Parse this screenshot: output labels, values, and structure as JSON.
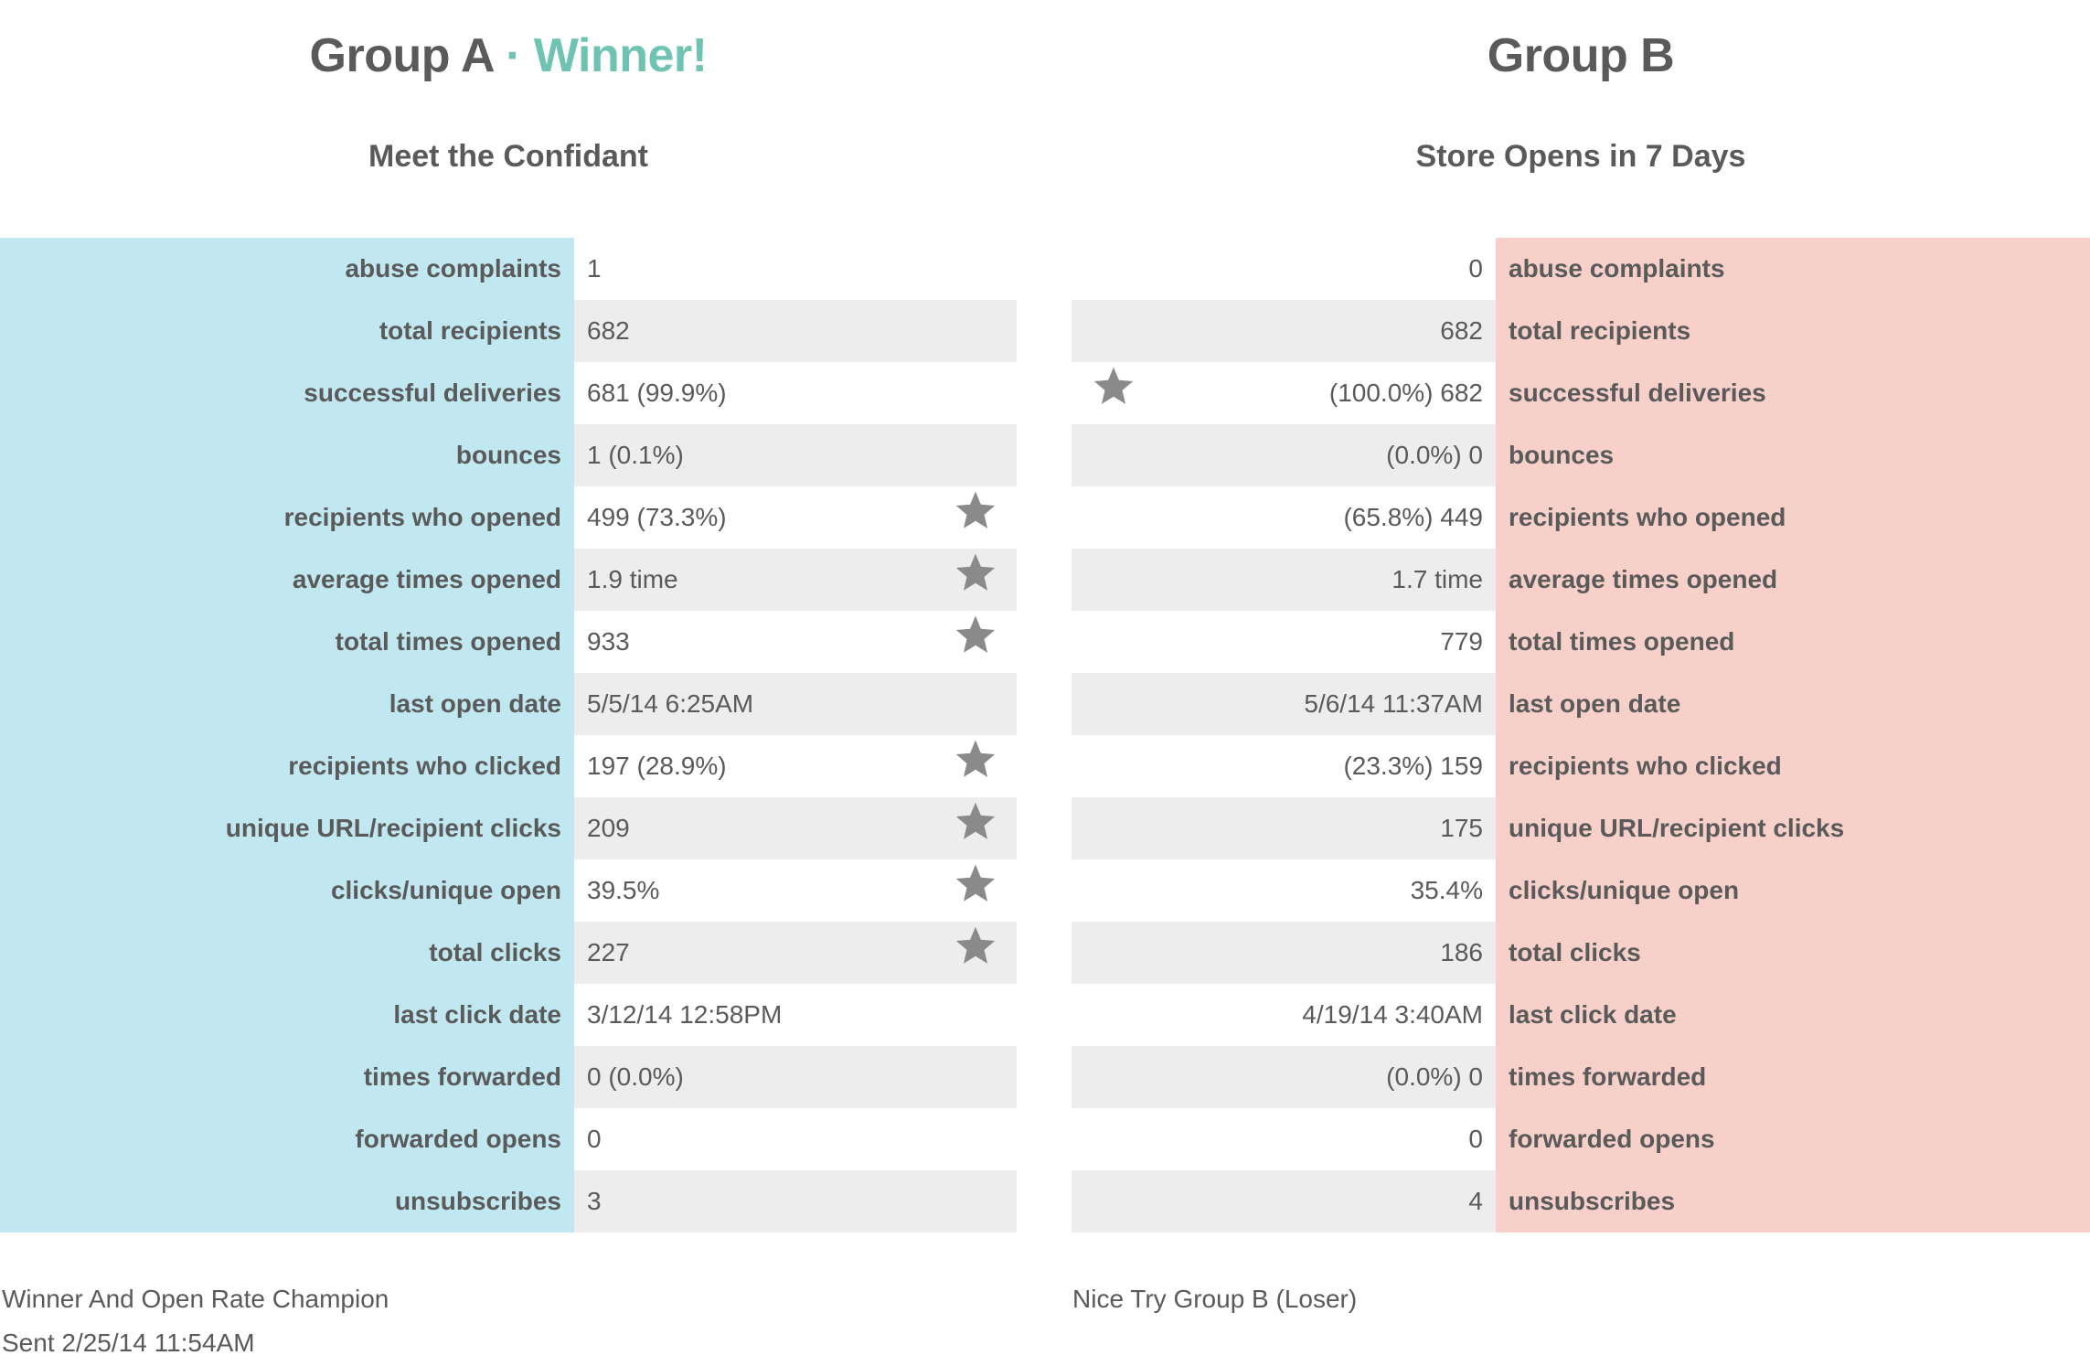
{
  "group_a": {
    "title": "Group A",
    "separator": "·",
    "winner_label": "Winner!",
    "subject": "Meet the Confidant",
    "footer_note": "Winner And Open Rate Champion",
    "sent": "Sent 2/25/14 11:54AM",
    "rows": [
      {
        "label": "abuse complaints",
        "value": "1",
        "star": false
      },
      {
        "label": "total recipients",
        "value": "682",
        "star": false
      },
      {
        "label": "successful deliveries",
        "value": "681 (99.9%)",
        "star": false
      },
      {
        "label": "bounces",
        "value": "1 (0.1%)",
        "star": false
      },
      {
        "label": "recipients who opened",
        "value": "499 (73.3%)",
        "star": true
      },
      {
        "label": "average times opened",
        "value": "1.9 time",
        "star": true
      },
      {
        "label": "total times opened",
        "value": "933",
        "star": true
      },
      {
        "label": "last open date",
        "value": "5/5/14 6:25AM",
        "star": false
      },
      {
        "label": "recipients who clicked",
        "value": "197 (28.9%)",
        "star": true
      },
      {
        "label": "unique URL/recipient clicks",
        "value": "209",
        "star": true
      },
      {
        "label": "clicks/unique open",
        "value": "39.5%",
        "star": true
      },
      {
        "label": "total clicks",
        "value": "227",
        "star": true
      },
      {
        "label": "last click date",
        "value": "3/12/14 12:58PM",
        "star": false
      },
      {
        "label": "times forwarded",
        "value": "0 (0.0%)",
        "star": false
      },
      {
        "label": "forwarded opens",
        "value": "0",
        "star": false
      },
      {
        "label": "unsubscribes",
        "value": "3",
        "star": false
      }
    ]
  },
  "group_b": {
    "title": "Group B",
    "subject": "Store Opens in 7 Days",
    "footer_note": "Nice Try Group B (Loser)",
    "rows": [
      {
        "label": "abuse complaints",
        "value": "0",
        "star": false
      },
      {
        "label": "total recipients",
        "value": "682",
        "star": false
      },
      {
        "label": "successful deliveries",
        "value": "(100.0%) 682",
        "star": true
      },
      {
        "label": "bounces",
        "value": "(0.0%) 0",
        "star": false
      },
      {
        "label": "recipients who opened",
        "value": "(65.8%) 449",
        "star": false
      },
      {
        "label": "average times opened",
        "value": "1.7 time",
        "star": false
      },
      {
        "label": "total times opened",
        "value": "779",
        "star": false
      },
      {
        "label": "last open date",
        "value": "5/6/14 11:37AM",
        "star": false
      },
      {
        "label": "recipients who clicked",
        "value": "(23.3%) 159",
        "star": false
      },
      {
        "label": "unique URL/recipient clicks",
        "value": "175",
        "star": false
      },
      {
        "label": "clicks/unique open",
        "value": "35.4%",
        "star": false
      },
      {
        "label": "total clicks",
        "value": "186",
        "star": false
      },
      {
        "label": "last click date",
        "value": "4/19/14 3:40AM",
        "star": false
      },
      {
        "label": "times forwarded",
        "value": "(0.0%) 0",
        "star": false
      },
      {
        "label": "forwarded opens",
        "value": "0",
        "star": false
      },
      {
        "label": "unsubscribes",
        "value": "4",
        "star": false
      }
    ]
  },
  "colors": {
    "text": "#5a5a5a",
    "winner_accent": "#6fc3b2",
    "group_a_label_bg": "#c1e8f0",
    "group_b_label_bg": "#f6d0c9",
    "alt_row_bg": "#ededed",
    "star": "#8a8a8a"
  },
  "icons": {
    "best_metric": "star-icon"
  }
}
